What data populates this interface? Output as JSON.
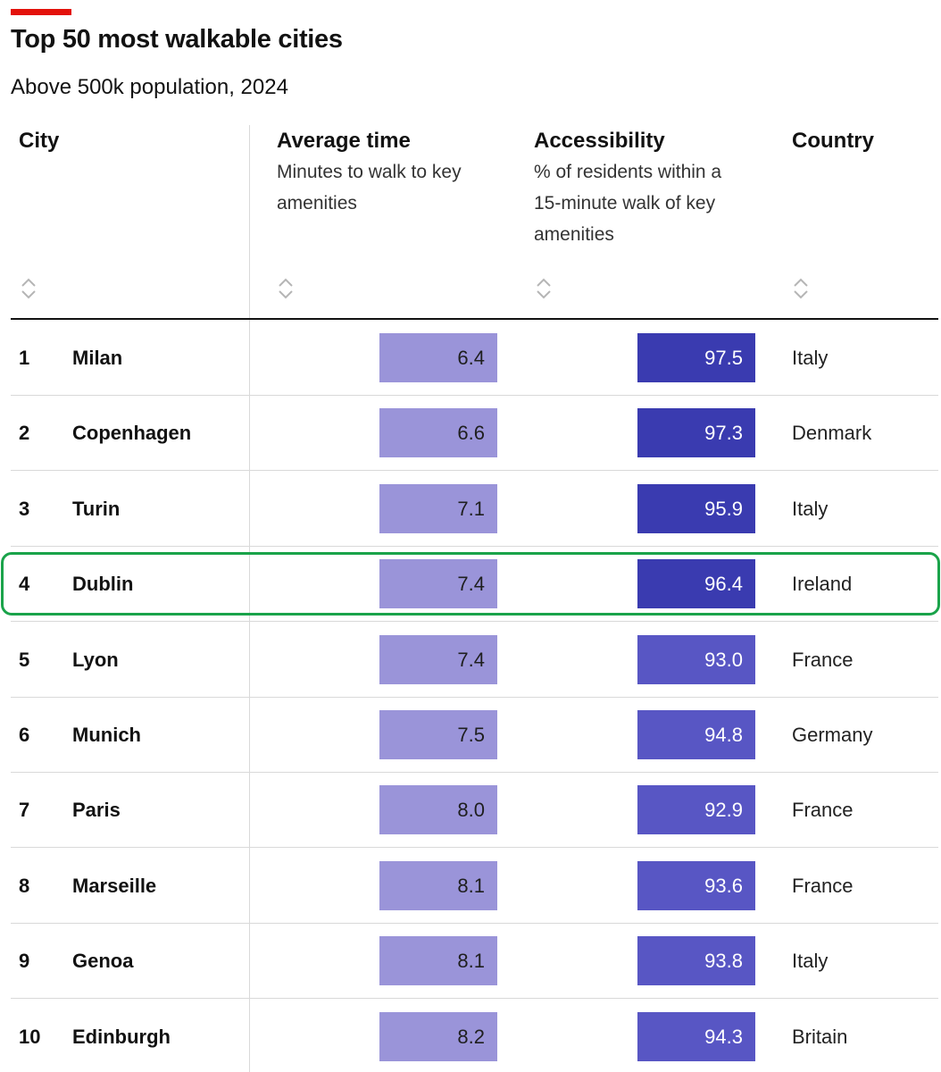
{
  "header": {
    "title": "Top 50 most walkable cities",
    "subtitle": "Above 500k population, 2024"
  },
  "columns": {
    "city": {
      "label": "City"
    },
    "time": {
      "label": "Average time",
      "sub1": "Minutes to walk to key",
      "sub2": "amenities"
    },
    "access": {
      "label": "Accessibility",
      "sub1": "% of residents within a",
      "sub2": "15-minute walk of key",
      "sub3": "amenities"
    },
    "country": {
      "label": "Country"
    }
  },
  "colors": {
    "accent": "#e3120b",
    "time_fill": "#9a94d9",
    "access_dark": "#3a3bb0",
    "access_mid": "#5856c4",
    "highlight": "#1aa34a"
  },
  "chart_data": {
    "type": "table",
    "title": "Top 50 most walkable cities",
    "subtitle": "Above 500k population, 2024",
    "highlighted_rank": 4,
    "rows": [
      {
        "rank": "1",
        "city": "Milan",
        "time": "6.4",
        "access": "97.5",
        "country": "Italy"
      },
      {
        "rank": "2",
        "city": "Copenhagen",
        "time": "6.6",
        "access": "97.3",
        "country": "Denmark"
      },
      {
        "rank": "3",
        "city": "Turin",
        "time": "7.1",
        "access": "95.9",
        "country": "Italy"
      },
      {
        "rank": "4",
        "city": "Dublin",
        "time": "7.4",
        "access": "96.4",
        "country": "Ireland"
      },
      {
        "rank": "5",
        "city": "Lyon",
        "time": "7.4",
        "access": "93.0",
        "country": "France"
      },
      {
        "rank": "6",
        "city": "Munich",
        "time": "7.5",
        "access": "94.8",
        "country": "Germany"
      },
      {
        "rank": "7",
        "city": "Paris",
        "time": "8.0",
        "access": "92.9",
        "country": "France"
      },
      {
        "rank": "8",
        "city": "Marseille",
        "time": "8.1",
        "access": "93.6",
        "country": "France"
      },
      {
        "rank": "9",
        "city": "Genoa",
        "time": "8.1",
        "access": "93.8",
        "country": "Italy"
      },
      {
        "rank": "10",
        "city": "Edinburgh",
        "time": "8.2",
        "access": "94.3",
        "country": "Britain"
      }
    ]
  }
}
